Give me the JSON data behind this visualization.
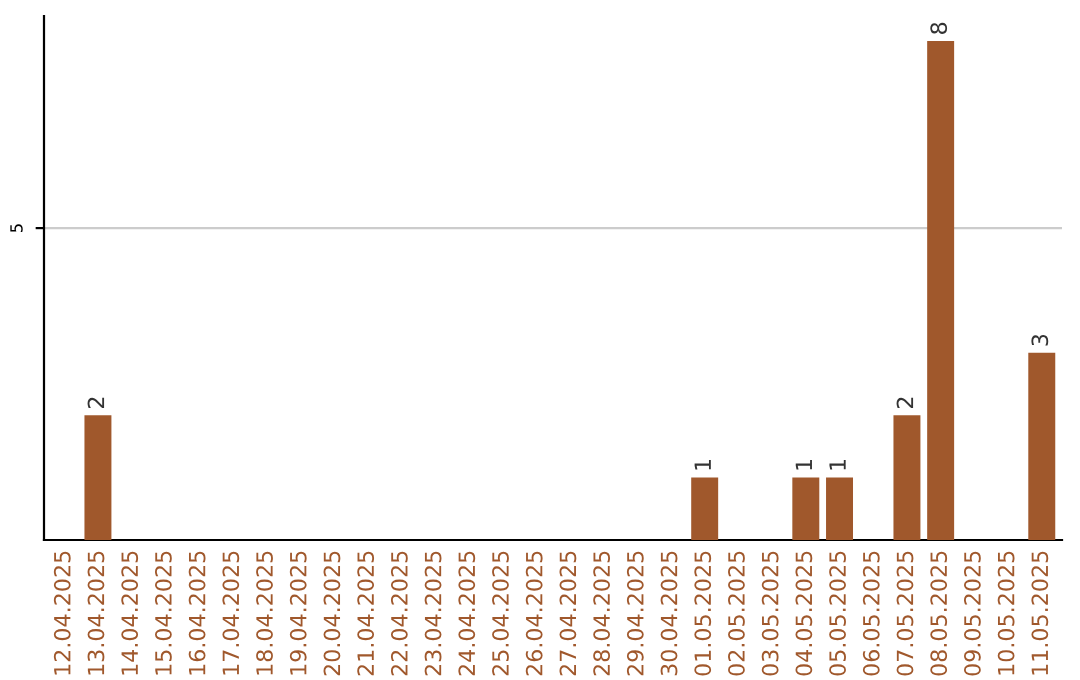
{
  "chart_data": {
    "type": "bar",
    "categories": [
      "12.04.2025",
      "13.04.2025",
      "14.04.2025",
      "15.04.2025",
      "16.04.2025",
      "17.04.2025",
      "18.04.2025",
      "19.04.2025",
      "20.04.2025",
      "21.04.2025",
      "22.04.2025",
      "23.04.2025",
      "24.04.2025",
      "25.04.2025",
      "26.04.2025",
      "27.04.2025",
      "28.04.2025",
      "29.04.2025",
      "30.04.2025",
      "01.05.2025",
      "02.05.2025",
      "03.05.2025",
      "04.05.2025",
      "05.05.2025",
      "06.05.2025",
      "07.05.2025",
      "08.05.2025",
      "09.05.2025",
      "10.05.2025",
      "11.05.2025"
    ],
    "values": [
      0,
      2,
      0,
      0,
      0,
      0,
      0,
      0,
      0,
      0,
      0,
      0,
      0,
      0,
      0,
      0,
      0,
      0,
      0,
      1,
      0,
      0,
      1,
      1,
      0,
      2,
      8,
      0,
      0,
      3
    ],
    "value_labels": [
      null,
      "2",
      null,
      null,
      null,
      null,
      null,
      null,
      null,
      null,
      null,
      null,
      null,
      null,
      null,
      null,
      null,
      null,
      null,
      "1",
      null,
      null,
      "1",
      "1",
      null,
      "2",
      "8",
      null,
      null,
      "3"
    ],
    "color": "#a0582c",
    "ylim": [
      0,
      8.4
    ],
    "yticks": [
      5
    ],
    "grid": "y"
  }
}
